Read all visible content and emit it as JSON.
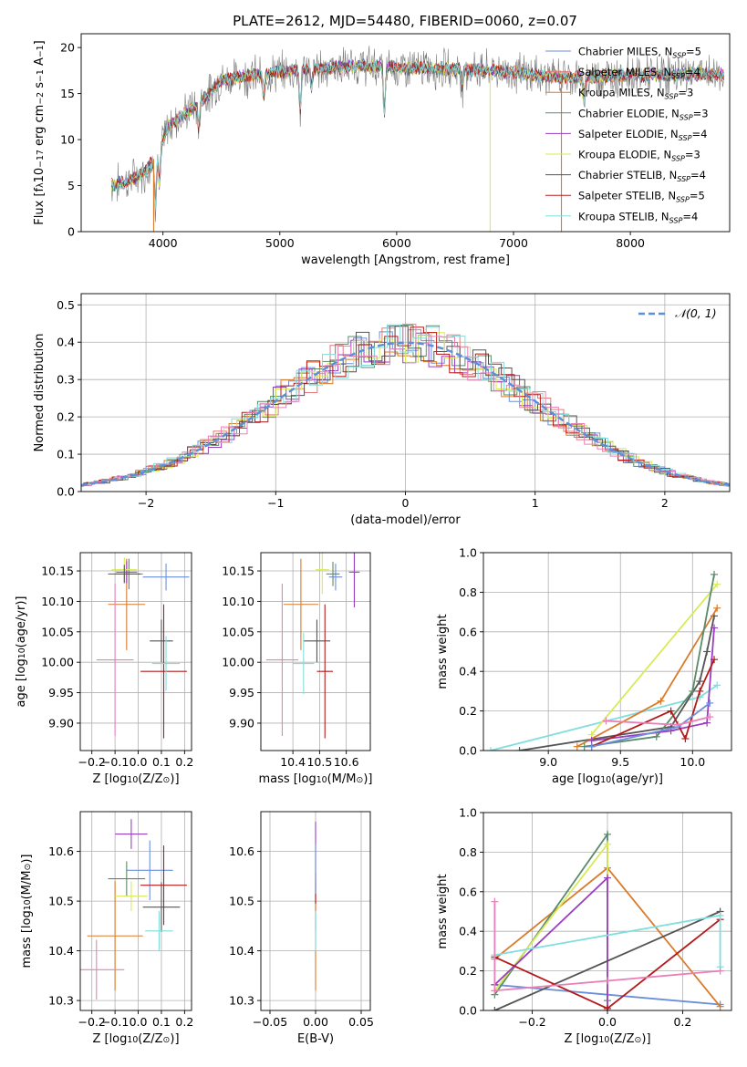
{
  "figure": {
    "title": "PLATE=2612, MJD=54480, FIBERID=0060, z=0.07"
  },
  "colors": {
    "Chabrier MILES": "#6b8fdb",
    "Salpeter MILES": "#e67a7a",
    "Kroupa MILES": "#d97b2a",
    "Chabrier ELODIE": "#5a8a6a",
    "Salpeter ELODIE": "#9a3fbf",
    "Kroupa ELODIE": "#d9ea57",
    "Chabrier STELIB": "#555555",
    "Salpeter STELIB": "#b31b1b",
    "Kroupa STELIB": "#80dede",
    "Pink": "#e97fb8",
    "Dashed": "#5b8fd9",
    "Grid": "#b0b0b0",
    "Observed": "#7a7a7a"
  },
  "chart_data": [
    {
      "id": "spectrum",
      "type": "line",
      "xlabel": "wavelength [Angstrom, rest frame]",
      "ylabel": "Flux [f$_\\lambda$10$^{-17}$ erg cm$^{-2}$ s$^{-1}$ A$^{-1}$]",
      "ylabel_parts": [
        "Flux [f",
        "λ",
        "10",
        "−17",
        " erg cm",
        "−2",
        " s",
        "−1",
        " A",
        "−1",
        "]"
      ],
      "xlim": [
        3300,
        8850
      ],
      "ylim": [
        0,
        21.5
      ],
      "xticks": [
        4000,
        5000,
        6000,
        7000,
        8000
      ],
      "yticks": [
        0,
        5,
        10,
        15,
        20
      ],
      "grid": false,
      "legend_position": "top-right",
      "series": [
        {
          "name": "Chabrier MILES",
          "nssp": "5"
        },
        {
          "name": "Salpeter MILES",
          "nssp": "4"
        },
        {
          "name": "Kroupa MILES",
          "nssp": "3"
        },
        {
          "name": "Chabrier ELODIE",
          "nssp": "3"
        },
        {
          "name": "Salpeter ELODIE",
          "nssp": "4"
        },
        {
          "name": "Kroupa ELODIE",
          "nssp": "3"
        },
        {
          "name": "Chabrier STELIB",
          "nssp": "4"
        },
        {
          "name": "Salpeter STELIB",
          "nssp": "5"
        },
        {
          "name": "Kroupa STELIB",
          "nssp": "4"
        }
      ],
      "continuum": {
        "x": [
          3560,
          3700,
          3850,
          3950,
          4050,
          4200,
          4400,
          4500,
          4650,
          4800,
          5000,
          5200,
          5400,
          5600,
          5800,
          6000,
          6200,
          6400,
          6600,
          6800,
          7000,
          7200,
          7400,
          7600,
          7800,
          8000,
          8200,
          8400,
          8600,
          8800
        ],
        "y": [
          5.0,
          5.5,
          6.5,
          8.5,
          11.5,
          13.0,
          15.0,
          16.5,
          16.8,
          17.0,
          17.3,
          17.6,
          17.8,
          17.9,
          18.0,
          17.8,
          17.8,
          17.7,
          17.6,
          17.5,
          17.3,
          17.0,
          16.8,
          16.8,
          16.9,
          17.0,
          17.0,
          17.1,
          17.2,
          17.0
        ]
      },
      "absorption_features": [
        {
          "x": 3935,
          "depth": 5.0
        },
        {
          "x": 3970,
          "depth": 4.0
        },
        {
          "x": 4305,
          "depth": 3.0
        },
        {
          "x": 4861,
          "depth": 2.5
        },
        {
          "x": 5175,
          "depth": 4.5
        },
        {
          "x": 5270,
          "depth": 2.0
        },
        {
          "x": 5895,
          "depth": 5.0
        },
        {
          "x": 6563,
          "depth": 2.0
        },
        {
          "x": 7600,
          "depth": 2.5
        }
      ],
      "dropouts": [
        {
          "x": 3920,
          "series": "Kroupa MILES"
        },
        {
          "x": 6800,
          "series": "Kroupa ELODIE"
        },
        {
          "x": 7410,
          "series": "Kroupa MILES"
        }
      ]
    },
    {
      "id": "residuals",
      "type": "line",
      "xlabel": "(data-model)/error",
      "ylabel": "Normed distribution",
      "xlim": [
        -2.5,
        2.5
      ],
      "ylim": [
        0,
        0.53
      ],
      "xticks": [
        -2,
        -1,
        0,
        1,
        2
      ],
      "yticks": [
        0.0,
        0.1,
        0.2,
        0.3,
        0.4,
        0.5
      ],
      "grid": true,
      "legend_position": "top-right",
      "reference_label": "𝒩(0, 1)",
      "bin_width": 0.1
    },
    {
      "id": "age_vs_Z",
      "type": "scatter",
      "xlabel": "Z [log",
      "xlabel_parts": [
        "Z [log",
        "10",
        "(Z/Z",
        "⊙",
        ")]"
      ],
      "ylabel_parts": [
        "age  [log",
        "10",
        "(age/yr)]"
      ],
      "xlim": [
        -0.25,
        0.23
      ],
      "ylim": [
        9.855,
        10.18
      ],
      "xticks": [
        -0.2,
        -0.1,
        0.0,
        0.1,
        0.2
      ],
      "yticks": [
        9.9,
        9.95,
        10.0,
        10.05,
        10.1,
        10.15
      ],
      "grid": true,
      "points": [
        {
          "series": "Chabrier MILES",
          "x": 0.12,
          "y": 10.14,
          "xerr": 0.1,
          "yerr": 0.022
        },
        {
          "series": "Kroupa MILES",
          "x": -0.05,
          "y": 10.095,
          "xerr": 0.08,
          "yerr": 0.075
        },
        {
          "series": "Chabrier ELODIE",
          "x": -0.04,
          "y": 10.145,
          "xerr": 0.06,
          "yerr": 0.025
        },
        {
          "series": "Salpeter ELODIE",
          "x": -0.05,
          "y": 10.148,
          "xerr": 0.045,
          "yerr": 0.018
        },
        {
          "series": "Kroupa ELODIE",
          "x": -0.06,
          "y": 10.152,
          "xerr": 0.055,
          "yerr": 0.02
        },
        {
          "series": "Chabrier STELIB",
          "x": -0.06,
          "y": 10.145,
          "xerr": 0.07,
          "yerr": 0.015
        },
        {
          "series": "Chabrier STELIB",
          "x": 0.1,
          "y": 10.035,
          "xerr": 0.05,
          "yerr": 0.035
        },
        {
          "series": "Salpeter STELIB",
          "x": 0.11,
          "y": 9.985,
          "xerr": 0.1,
          "yerr": 0.11
        },
        {
          "series": "Kroupa STELIB",
          "x": 0.12,
          "y": 9.998,
          "xerr": 0.06,
          "yerr": 0.045
        },
        {
          "series": "Pink",
          "x": -0.1,
          "y": 10.004,
          "xerr": 0.08,
          "yerr": 0.125
        }
      ]
    },
    {
      "id": "age_vs_mass",
      "type": "scatter",
      "xlabel_parts": [
        "mass [log",
        "10",
        "(M/M",
        "⊙",
        ")]"
      ],
      "xlim": [
        10.28,
        10.69
      ],
      "ylim": [
        9.855,
        10.18
      ],
      "xticks": [
        10.4,
        10.5,
        10.6
      ],
      "yticks": [
        9.9,
        9.95,
        10.0,
        10.05,
        10.1,
        10.15
      ],
      "grid": true,
      "points": [
        {
          "series": "Chabrier MILES",
          "x": 10.56,
          "y": 10.14,
          "xerr": 0.025,
          "yerr": 0.022
        },
        {
          "series": "Kroupa MILES",
          "x": 10.43,
          "y": 10.095,
          "xerr": 0.065,
          "yerr": 0.075
        },
        {
          "series": "Chabrier ELODIE",
          "x": 10.55,
          "y": 10.145,
          "xerr": 0.025,
          "yerr": 0.02
        },
        {
          "series": "Salpeter ELODIE",
          "x": 10.63,
          "y": 10.148,
          "xerr": 0.02,
          "yerr": 0.058
        },
        {
          "series": "Kroupa ELODIE",
          "x": 10.51,
          "y": 10.152,
          "xerr": 0.025,
          "yerr": 0.04
        },
        {
          "series": "Chabrier STELIB",
          "x": 10.49,
          "y": 10.035,
          "xerr": 0.05,
          "yerr": 0.035
        },
        {
          "series": "Salpeter STELIB",
          "x": 10.52,
          "y": 9.985,
          "xerr": 0.03,
          "yerr": 0.11
        },
        {
          "series": "Kroupa STELIB",
          "x": 10.44,
          "y": 9.998,
          "xerr": 0.04,
          "yerr": 0.05
        },
        {
          "series": "Pink",
          "x": 10.36,
          "y": 10.004,
          "xerr": 0.06,
          "yerr": 0.125
        }
      ]
    },
    {
      "id": "mass_vs_Z",
      "type": "scatter",
      "xlabel_parts": [
        "Z [log",
        "10",
        "(Z/Z",
        "⊙",
        ")]"
      ],
      "ylabel_parts": [
        "mass [log",
        "10",
        "(M/M",
        "⊙",
        ")]"
      ],
      "xlim": [
        -0.25,
        0.23
      ],
      "ylim": [
        10.28,
        10.68
      ],
      "xticks": [
        -0.2,
        -0.1,
        0.0,
        0.1,
        0.2
      ],
      "yticks": [
        10.3,
        10.4,
        10.5,
        10.6
      ],
      "grid": true,
      "points": [
        {
          "series": "Chabrier MILES",
          "x": 0.05,
          "y": 10.562,
          "xerr": 0.1,
          "yerr": 0.06
        },
        {
          "series": "Kroupa MILES",
          "x": -0.1,
          "y": 10.43,
          "xerr": 0.12,
          "yerr": 0.11
        },
        {
          "series": "Chabrier ELODIE",
          "x": -0.05,
          "y": 10.545,
          "xerr": 0.08,
          "yerr": 0.035
        },
        {
          "series": "Salpeter ELODIE",
          "x": -0.03,
          "y": 10.635,
          "xerr": 0.07,
          "yerr": 0.03
        },
        {
          "series": "Kroupa ELODIE",
          "x": -0.03,
          "y": 10.51,
          "xerr": 0.07,
          "yerr": 0.03
        },
        {
          "series": "Chabrier STELIB",
          "x": 0.1,
          "y": 10.488,
          "xerr": 0.08,
          "yerr": 0.05
        },
        {
          "series": "Salpeter STELIB",
          "x": 0.11,
          "y": 10.532,
          "xerr": 0.1,
          "yerr": 0.08
        },
        {
          "series": "Kroupa STELIB",
          "x": 0.09,
          "y": 10.44,
          "xerr": 0.06,
          "yerr": 0.04
        },
        {
          "series": "Pink",
          "x": -0.18,
          "y": 10.362,
          "xerr": 0.12,
          "yerr": 0.06
        }
      ]
    },
    {
      "id": "mass_vs_ebv",
      "type": "scatter",
      "xlabel": "E(B-V)",
      "xlim": [
        -0.06,
        0.06
      ],
      "ylim": [
        10.28,
        10.68
      ],
      "xticks": [
        -0.05,
        0.0,
        0.05
      ],
      "yticks": [
        10.3,
        10.4,
        10.5,
        10.6
      ],
      "grid": true,
      "points": [
        {
          "series": "Salpeter ELODIE",
          "x": 0.0,
          "y": 10.55,
          "yerr": 0.11
        },
        {
          "series": "Kroupa MILES",
          "x": 0.0,
          "y": 10.43,
          "yerr": 0.11
        },
        {
          "series": "Salpeter STELIB",
          "x": 0.0,
          "y": 10.525,
          "yerr": 0.03
        },
        {
          "series": "Chabrier MILES",
          "x": 0.0,
          "y": 10.565,
          "yerr": 0.05
        },
        {
          "series": "Kroupa STELIB",
          "x": 0.0,
          "y": 10.44,
          "yerr": 0.04
        }
      ]
    },
    {
      "id": "weight_vs_age",
      "type": "line",
      "xlabel_parts": [
        "age  [log",
        "10",
        "(age/yr)]"
      ],
      "ylabel": "mass weight",
      "xlim": [
        8.55,
        10.27
      ],
      "ylim": [
        0,
        1.0
      ],
      "xticks": [
        9.0,
        9.5,
        10.0
      ],
      "yticks": [
        0.0,
        0.2,
        0.4,
        0.6,
        0.8,
        1.0
      ],
      "grid": true,
      "series": [
        {
          "name": "Kroupa STELIB",
          "x": [
            8.6,
            10.05,
            10.17
          ],
          "y": [
            0.0,
            0.27,
            0.33
          ]
        },
        {
          "name": "Chabrier STELIB",
          "x": [
            8.8,
            9.85,
            10.05,
            10.1,
            10.15
          ],
          "y": [
            0.0,
            0.12,
            0.35,
            0.5,
            0.68
          ]
        },
        {
          "name": "Kroupa MILES",
          "x": [
            9.2,
            9.78,
            10.17
          ],
          "y": [
            0.02,
            0.25,
            0.72
          ]
        },
        {
          "name": "Kroupa ELODIE",
          "x": [
            9.3,
            10.17
          ],
          "y": [
            0.08,
            0.84
          ]
        },
        {
          "name": "Chabrier ELODIE",
          "x": [
            9.25,
            9.75,
            10.0,
            10.15
          ],
          "y": [
            0.02,
            0.07,
            0.3,
            0.89
          ]
        },
        {
          "name": "Salpeter ELODIE",
          "x": [
            9.3,
            9.85,
            10.1,
            10.15
          ],
          "y": [
            0.05,
            0.1,
            0.14,
            0.62
          ]
        },
        {
          "name": "Salpeter STELIB",
          "x": [
            9.3,
            9.85,
            9.95,
            10.05,
            10.15
          ],
          "y": [
            0.02,
            0.2,
            0.06,
            0.3,
            0.46
          ]
        },
        {
          "name": "Chabrier MILES",
          "x": [
            9.3,
            9.9,
            10.12
          ],
          "y": [
            0.02,
            0.12,
            0.24
          ]
        },
        {
          "name": "Pink",
          "x": [
            9.4,
            9.9,
            10.12
          ],
          "y": [
            0.15,
            0.13,
            0.17
          ]
        }
      ]
    },
    {
      "id": "weight_vs_Z",
      "type": "line",
      "xlabel_parts": [
        "Z [log",
        "10",
        "(Z/Z",
        "⊙",
        ")]"
      ],
      "ylabel": "mass weight",
      "xlim": [
        -0.33,
        0.33
      ],
      "ylim": [
        0,
        1.0
      ],
      "xticks": [
        -0.2,
        0.0,
        0.2
      ],
      "yticks": [
        0.0,
        0.2,
        0.4,
        0.6,
        0.8,
        1.0
      ],
      "grid": true,
      "series": [
        {
          "name": "Chabrier MILES",
          "x": [
            -0.3,
            0.3
          ],
          "y": [
            0.13,
            0.03
          ]
        },
        {
          "name": "Kroupa MILES",
          "x": [
            -0.3,
            0.0,
            0.3
          ],
          "y": [
            0.26,
            0.72,
            0.02
          ]
        },
        {
          "name": "Chabrier ELODIE",
          "x": [
            -0.3,
            0.0,
            0.0
          ],
          "y": [
            0.08,
            0.89,
            0.05
          ]
        },
        {
          "name": "Kroupa ELODIE",
          "x": [
            -0.3,
            0.0,
            0.0
          ],
          "y": [
            0.1,
            0.84,
            0.0
          ]
        },
        {
          "name": "Salpeter ELODIE",
          "x": [
            -0.3,
            0.0,
            0.0
          ],
          "y": [
            0.13,
            0.67,
            0.0
          ]
        },
        {
          "name": "Chabrier STELIB",
          "x": [
            -0.3,
            0.3
          ],
          "y": [
            0.0,
            0.5
          ]
        },
        {
          "name": "Salpeter STELIB",
          "x": [
            -0.3,
            0.0,
            0.3
          ],
          "y": [
            0.27,
            0.01,
            0.46
          ]
        },
        {
          "name": "Kroupa STELIB",
          "x": [
            -0.3,
            0.3,
            0.3
          ],
          "y": [
            0.28,
            0.48,
            0.22
          ]
        },
        {
          "name": "Pink",
          "x": [
            -0.3,
            -0.3,
            0.0,
            0.3
          ],
          "y": [
            0.55,
            0.1,
            0.15,
            0.2
          ]
        }
      ]
    }
  ]
}
